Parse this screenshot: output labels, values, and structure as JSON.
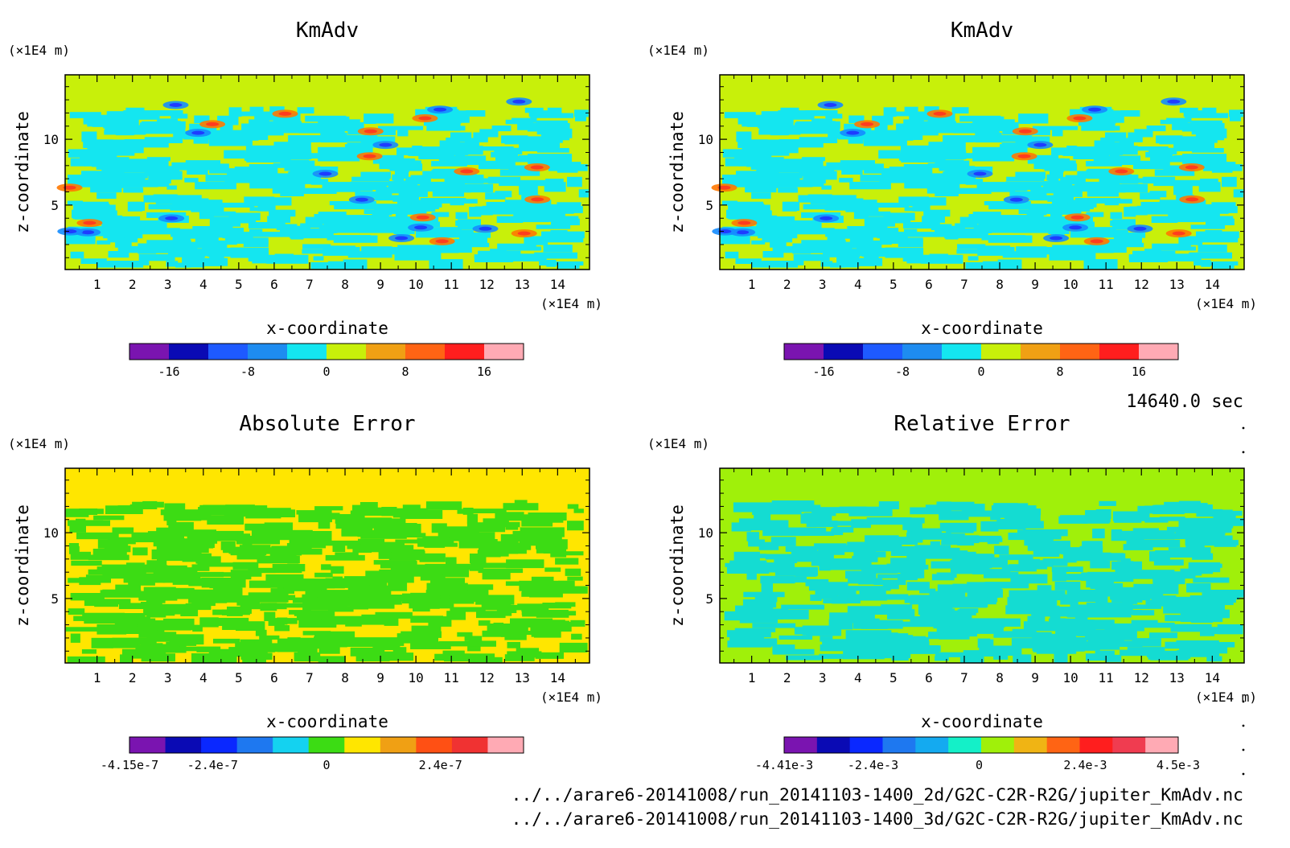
{
  "chart_data": [
    {
      "type": "heatmap",
      "title": "KmAdv",
      "xlabel": "x-coordinate",
      "ylabel": "z-coordinate",
      "x_unit": "(×1E4 m)",
      "y_unit": "(×1E4 m)",
      "xlim": [
        0.1,
        14.9
      ],
      "ylim": [
        0.1,
        14.9
      ],
      "x_ticks": [
        1,
        2,
        3,
        4,
        5,
        6,
        7,
        8,
        9,
        10,
        11,
        12,
        13,
        14
      ],
      "y_ticks": [
        5,
        10
      ],
      "colorbar": {
        "colors": [
          "#7a14b0",
          "#0a0ab4",
          "#1e5aff",
          "#1e8cf0",
          "#14e6f0",
          "#c8f00a",
          "#f0a014",
          "#ff6414",
          "#ff1e1e",
          "#ffaab4"
        ],
        "tick_labels": [
          "-16",
          "-8",
          "0",
          "8",
          "16"
        ],
        "tick_values": [
          -16,
          -8,
          0,
          8,
          16
        ],
        "range": [
          -20,
          20
        ]
      },
      "background_color": "#c8f00a",
      "pattern_color": "#14e6f0"
    },
    {
      "type": "heatmap",
      "title": "KmAdv",
      "xlabel": "x-coordinate",
      "ylabel": "z-coordinate",
      "x_unit": "(×1E4 m)",
      "y_unit": "(×1E4 m)",
      "xlim": [
        0.1,
        14.9
      ],
      "ylim": [
        0.1,
        14.9
      ],
      "x_ticks": [
        1,
        2,
        3,
        4,
        5,
        6,
        7,
        8,
        9,
        10,
        11,
        12,
        13,
        14
      ],
      "y_ticks": [
        5,
        10
      ],
      "colorbar": {
        "colors": [
          "#7a14b0",
          "#0a0ab4",
          "#1e5aff",
          "#1e8cf0",
          "#14e6f0",
          "#c8f00a",
          "#f0a014",
          "#ff6414",
          "#ff1e1e",
          "#ffaab4"
        ],
        "tick_labels": [
          "-16",
          "-8",
          "0",
          "8",
          "16"
        ],
        "tick_values": [
          -16,
          -8,
          0,
          8,
          16
        ],
        "range": [
          -20,
          20
        ]
      },
      "background_color": "#c8f00a",
      "pattern_color": "#14e6f0"
    },
    {
      "type": "heatmap",
      "title": "Absolute Error",
      "xlabel": "x-coordinate",
      "ylabel": "z-coordinate",
      "x_unit": "(×1E4 m)",
      "y_unit": "(×1E4 m)",
      "xlim": [
        0.1,
        14.9
      ],
      "ylim": [
        0.1,
        14.9
      ],
      "x_ticks": [
        1,
        2,
        3,
        4,
        5,
        6,
        7,
        8,
        9,
        10,
        11,
        12,
        13,
        14
      ],
      "y_ticks": [
        5,
        10
      ],
      "colorbar": {
        "colors": [
          "#7a14b0",
          "#0a0ab4",
          "#0a28ff",
          "#1e78f0",
          "#14d2f0",
          "#3cdc14",
          "#ffe600",
          "#f0a014",
          "#ff5014",
          "#f03232",
          "#ffaab4"
        ],
        "tick_labels": [
          "-4.15e-7",
          "-2.4e-7",
          "0",
          "2.4e-7"
        ],
        "tick_values": [
          -4.15e-07,
          -2.4e-07,
          0,
          2.4e-07
        ],
        "range": [
          -4.15e-07,
          4.15e-07
        ]
      },
      "background_color": "#ffe600",
      "pattern_color": "#3cdc14"
    },
    {
      "type": "heatmap",
      "title": "Relative Error",
      "xlabel": "x-coordinate",
      "ylabel": "z-coordinate",
      "x_unit": "(×1E4 m)",
      "y_unit": "(×1E4 m)",
      "xlim": [
        0.1,
        14.9
      ],
      "ylim": [
        0.1,
        14.9
      ],
      "x_ticks": [
        1,
        2,
        3,
        4,
        5,
        6,
        7,
        8,
        9,
        10,
        11,
        12,
        13,
        14
      ],
      "y_ticks": [
        5,
        10
      ],
      "colorbar": {
        "colors": [
          "#7a14b0",
          "#0a0ab4",
          "#0a28ff",
          "#1e78f0",
          "#14aaf0",
          "#14f0c8",
          "#a0f00a",
          "#f0b414",
          "#ff6414",
          "#ff1e1e",
          "#f03c50",
          "#ffaab4"
        ],
        "tick_labels": [
          "-4.41e-3",
          "-2.4e-3",
          "0",
          "2.4e-3",
          "4.5e-3"
        ],
        "tick_values": [
          -0.00441,
          -0.0024,
          0,
          0.0024,
          0.0045
        ],
        "range": [
          -0.00441,
          0.0045
        ]
      },
      "background_color": "#a0f00a",
      "pattern_color": "#14dcd2"
    }
  ],
  "time_label": "14640.0 sec",
  "file_paths": [
    "../../arare6-20141008/run_20141103-1400_2d/G2C-C2R-R2G/jupiter_KmAdv.nc",
    "../../arare6-20141008/run_20141103-1400_3d/G2C-C2R-R2G/jupiter_KmAdv.nc"
  ]
}
